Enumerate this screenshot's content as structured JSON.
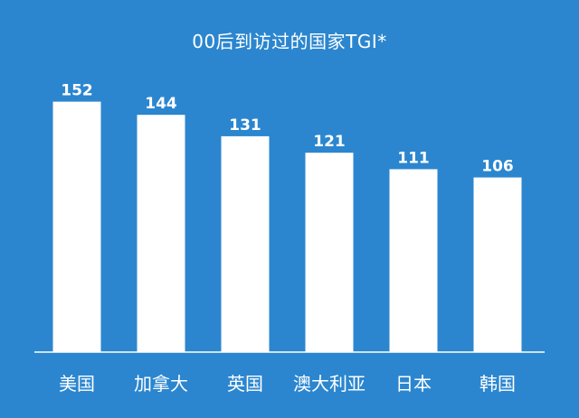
{
  "title": "00后到访过的国家TGI*",
  "colors": {
    "background": "#2b86cf",
    "bar": "#ffffff",
    "text": "#ffffff"
  },
  "chart_data": {
    "type": "bar",
    "title": "00后到访过的国家TGI*",
    "categories": [
      "美国",
      "加拿大",
      "英国",
      "澳大利亚",
      "日本",
      "韩国"
    ],
    "values": [
      152,
      144,
      131,
      121,
      111,
      106
    ],
    "data_labels": [
      "152",
      "144",
      "131",
      "121",
      "111",
      "106"
    ],
    "ylim": [
      0,
      200
    ],
    "grid": false,
    "legend": "none"
  }
}
